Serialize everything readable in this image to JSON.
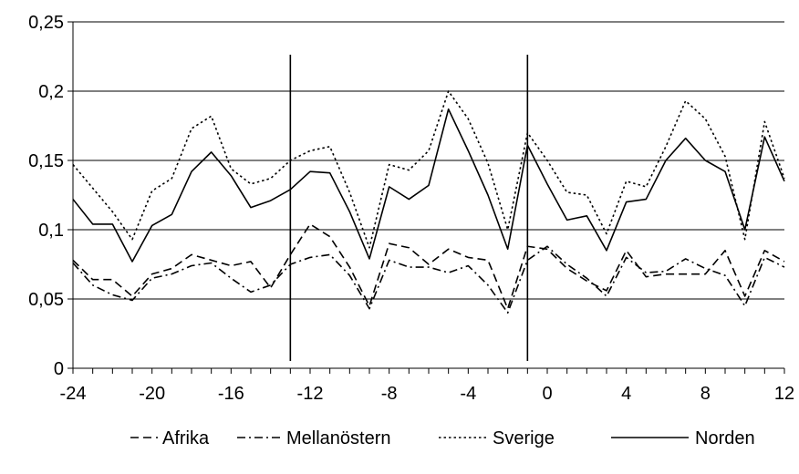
{
  "chart_data": {
    "type": "line",
    "title": "",
    "xlabel": "",
    "ylabel": "",
    "xlim": [
      -24,
      12
    ],
    "ylim": [
      0,
      0.25
    ],
    "x_ticks": [
      -24,
      -20,
      -16,
      -12,
      -8,
      -4,
      0,
      4,
      8,
      12
    ],
    "x_tick_labels": [
      "-24",
      "-20",
      "-16",
      "-12",
      "-8",
      "-4",
      "0",
      "4",
      "8",
      "12"
    ],
    "y_ticks": [
      0,
      0.05,
      0.1,
      0.15,
      0.2,
      0.25
    ],
    "y_tick_labels": [
      "0",
      "0,05",
      "0,1",
      "0,15",
      "0,2",
      "0,25"
    ],
    "grid": "horizontal",
    "legend_position": "bottom",
    "reference_lines_x": [
      -13,
      -1
    ],
    "x": [
      -24,
      -23,
      -22,
      -21,
      -20,
      -19,
      -18,
      -17,
      -16,
      -15,
      -14,
      -13,
      -12,
      -11,
      -10,
      -9,
      -8,
      -7,
      -6,
      -5,
      -4,
      -3,
      -2,
      -1,
      0,
      1,
      2,
      3,
      4,
      5,
      6,
      7,
      8,
      9,
      10,
      11,
      12
    ],
    "series": [
      {
        "name": "Afrika",
        "dash": "dash",
        "values": [
          0.078,
          0.064,
          0.064,
          0.052,
          0.068,
          0.072,
          0.082,
          0.078,
          0.074,
          0.077,
          0.058,
          0.082,
          0.104,
          0.095,
          0.073,
          0.045,
          0.09,
          0.087,
          0.075,
          0.086,
          0.08,
          0.078,
          0.043,
          0.088,
          0.086,
          0.072,
          0.063,
          0.056,
          0.085,
          0.066,
          0.068,
          0.068,
          0.068,
          0.085,
          0.052,
          0.085,
          0.077
        ]
      },
      {
        "name": "Mellanöstern",
        "dash": "dashdot",
        "values": [
          0.076,
          0.06,
          0.053,
          0.049,
          0.065,
          0.068,
          0.074,
          0.076,
          0.065,
          0.055,
          0.06,
          0.075,
          0.08,
          0.082,
          0.067,
          0.043,
          0.078,
          0.073,
          0.073,
          0.069,
          0.074,
          0.06,
          0.04,
          0.078,
          0.088,
          0.075,
          0.065,
          0.052,
          0.08,
          0.069,
          0.07,
          0.079,
          0.072,
          0.067,
          0.045,
          0.08,
          0.073
        ]
      },
      {
        "name": "Sverige",
        "dash": "dot",
        "values": [
          0.147,
          0.13,
          0.113,
          0.093,
          0.128,
          0.137,
          0.173,
          0.182,
          0.144,
          0.133,
          0.137,
          0.15,
          0.157,
          0.16,
          0.127,
          0.087,
          0.147,
          0.143,
          0.157,
          0.2,
          0.18,
          0.148,
          0.1,
          0.17,
          0.15,
          0.127,
          0.125,
          0.097,
          0.135,
          0.131,
          0.16,
          0.193,
          0.18,
          0.153,
          0.093,
          0.178,
          0.137
        ]
      },
      {
        "name": "Norden",
        "dash": "solid",
        "values": [
          0.122,
          0.104,
          0.104,
          0.077,
          0.103,
          0.111,
          0.142,
          0.156,
          0.139,
          0.116,
          0.121,
          0.129,
          0.142,
          0.141,
          0.113,
          0.079,
          0.131,
          0.122,
          0.132,
          0.187,
          0.157,
          0.125,
          0.086,
          0.161,
          0.133,
          0.107,
          0.11,
          0.085,
          0.12,
          0.122,
          0.15,
          0.166,
          0.15,
          0.142,
          0.1,
          0.167,
          0.135
        ]
      }
    ]
  }
}
